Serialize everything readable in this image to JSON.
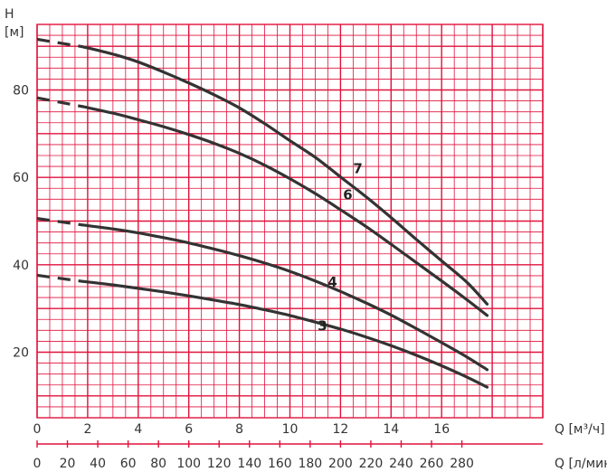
{
  "colors": {
    "grid": "#e0123c",
    "curve": "#333333",
    "text": "#333333"
  },
  "chart_data": {
    "type": "line",
    "ylabel_line1": "H",
    "ylabel_line2": "[м]",
    "xlabel": "Q [м³/ч]",
    "xlabel2": "Q [л/мин]",
    "xlim": [
      0,
      20
    ],
    "ylim": [
      5,
      95
    ],
    "x_ticks": [
      0,
      2,
      4,
      6,
      8,
      10,
      12,
      14,
      16
    ],
    "y_ticks": [
      20,
      40,
      60,
      80
    ],
    "x2_ticks": [
      0,
      20,
      40,
      60,
      80,
      100,
      120,
      140,
      160,
      180,
      200,
      220,
      240,
      260,
      280
    ],
    "grid": true,
    "series": [
      {
        "name": "7",
        "dashed_until": 1.8,
        "x": [
          0,
          1.8,
          3,
          4,
          5,
          6,
          7,
          8,
          9,
          10,
          11,
          12,
          13,
          14,
          15,
          16,
          17,
          17.8
        ],
        "y": [
          91.6,
          89.9,
          88.2,
          86.4,
          84.1,
          81.6,
          78.9,
          75.9,
          72.3,
          68.4,
          64.6,
          60.1,
          55.6,
          50.8,
          45.8,
          40.9,
          36.0,
          31.0
        ]
      },
      {
        "name": "6",
        "dashed_until": 1.8,
        "x": [
          0,
          1.8,
          3,
          4,
          5,
          6,
          7,
          8,
          9,
          10,
          11,
          12,
          13,
          14,
          15,
          16,
          17,
          17.8
        ],
        "y": [
          78.2,
          76.2,
          74.7,
          73.2,
          71.6,
          69.8,
          67.8,
          65.5,
          62.8,
          59.7,
          56.3,
          52.6,
          48.8,
          44.7,
          40.5,
          36.3,
          32.0,
          28.4
        ]
      },
      {
        "name": "4",
        "dashed_until": 1.8,
        "x": [
          0,
          1.8,
          3,
          4,
          5,
          6,
          7,
          8,
          9,
          10,
          11,
          12,
          13,
          14,
          15,
          16,
          17,
          17.8
        ],
        "y": [
          50.6,
          49.1,
          48.2,
          47.3,
          46.2,
          45.0,
          43.6,
          42.1,
          40.4,
          38.5,
          36.3,
          33.9,
          31.3,
          28.5,
          25.4,
          22.2,
          18.9,
          16.0
        ]
      },
      {
        "name": "3",
        "dashed_until": 1.8,
        "x": [
          0,
          1.8,
          3,
          4,
          5,
          6,
          7,
          8,
          9,
          10,
          11,
          12,
          13,
          14,
          15,
          16,
          17,
          17.8
        ],
        "y": [
          37.6,
          36.2,
          35.4,
          34.6,
          33.8,
          32.9,
          31.9,
          30.9,
          29.7,
          28.4,
          26.9,
          25.3,
          23.5,
          21.5,
          19.3,
          16.9,
          14.3,
          12.0
        ]
      }
    ],
    "curve_labels": [
      {
        "text": "7",
        "x": 12.5,
        "y": 61
      },
      {
        "text": "6",
        "x": 12.1,
        "y": 55
      },
      {
        "text": "4",
        "x": 11.5,
        "y": 35
      },
      {
        "text": "3",
        "x": 11.1,
        "y": 25
      }
    ]
  }
}
